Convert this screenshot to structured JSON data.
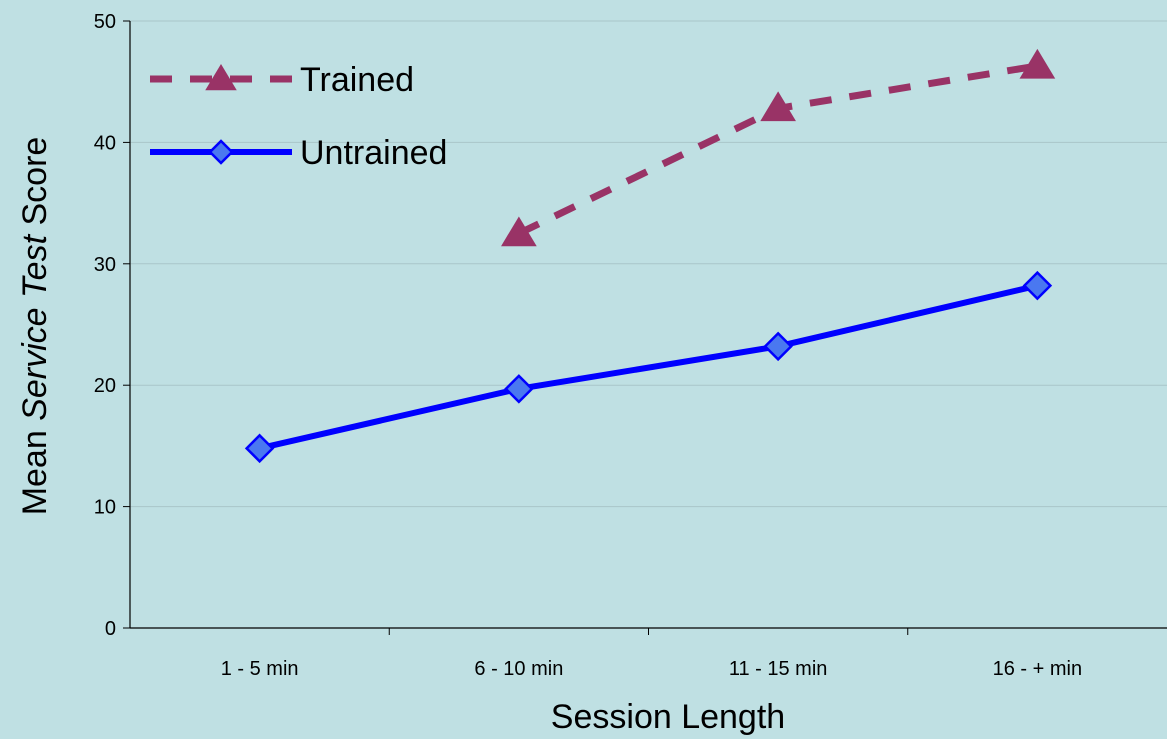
{
  "chart_data": {
    "type": "line",
    "title": "",
    "xlabel": "Session Length",
    "ylabel": {
      "parts": [
        {
          "text": "Mean ",
          "italic": false
        },
        {
          "text": "Service Test",
          "italic": true
        },
        {
          "text": " Score",
          "italic": false
        }
      ]
    },
    "categories": [
      "1 - 5 min",
      "6 - 10 min",
      "11 - 15 min",
      "16 - + min"
    ],
    "ylim": [
      0,
      50
    ],
    "yticks": [
      0,
      10,
      20,
      30,
      40,
      50
    ],
    "grid": true,
    "legend_position": "top-left",
    "series": [
      {
        "name": "Trained",
        "values": [
          null,
          32.5,
          42.8,
          46.3
        ],
        "color": "#993366",
        "line_style": "dashed",
        "marker": "triangle"
      },
      {
        "name": "Untrained",
        "values": [
          14.8,
          19.7,
          23.2,
          28.2
        ],
        "color": "#0000ff",
        "line_style": "solid",
        "marker": "diamond",
        "marker_fill": "#4a78f0"
      }
    ],
    "colors": {
      "background": "#bfe0e3",
      "gridline": "#a9c6c9",
      "axis": "#000000"
    }
  }
}
